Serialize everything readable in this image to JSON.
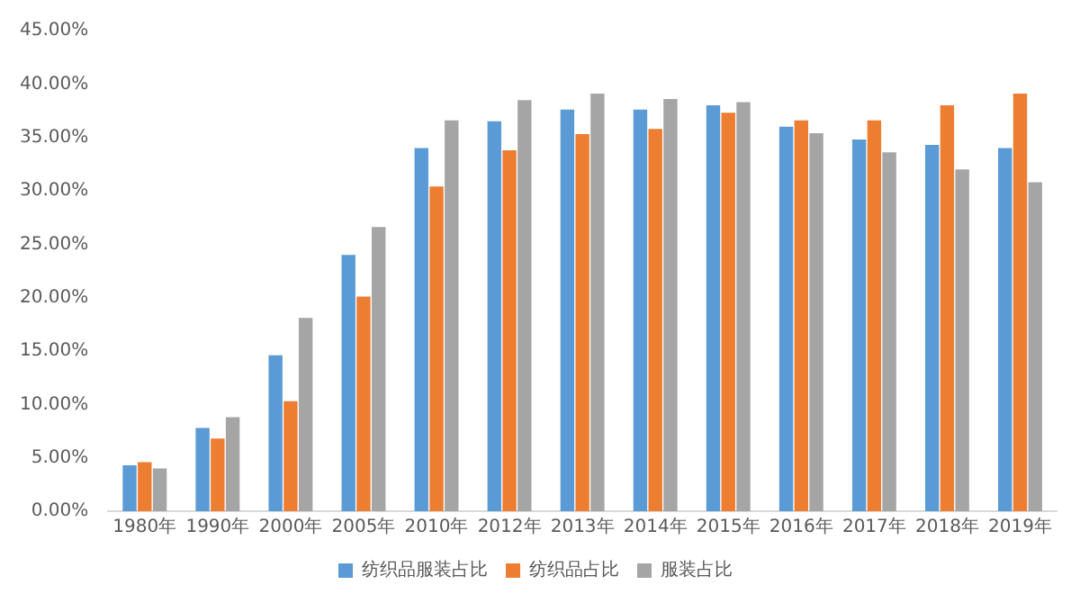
{
  "chart_data": {
    "type": "bar",
    "categories": [
      "1980年",
      "1990年",
      "2000年",
      "2005年",
      "2010年",
      "2012年",
      "2013年",
      "2014年",
      "2015年",
      "2016年",
      "2017年",
      "2018年",
      "2019年"
    ],
    "series": [
      {
        "name": "纺织品服装占比",
        "color": "#5b9bd5",
        "values": [
          4.3,
          7.8,
          14.6,
          24.0,
          34.0,
          36.5,
          37.6,
          37.6,
          38.0,
          36.0,
          34.8,
          34.3,
          34.0
        ]
      },
      {
        "name": "纺织品占比",
        "color": "#ed7d31",
        "values": [
          4.6,
          6.8,
          10.3,
          20.1,
          30.4,
          33.8,
          35.3,
          35.8,
          37.3,
          36.6,
          36.6,
          38.0,
          39.1
        ]
      },
      {
        "name": "服装占比",
        "color": "#a5a5a5",
        "values": [
          4.0,
          8.8,
          18.1,
          26.6,
          36.6,
          38.5,
          39.1,
          38.6,
          38.3,
          35.4,
          33.6,
          32.0,
          30.8
        ]
      }
    ],
    "ylim": [
      0,
      45
    ],
    "yticks": [
      {
        "value": 0,
        "label": "0.00%"
      },
      {
        "value": 5,
        "label": "5.00%"
      },
      {
        "value": 10,
        "label": "10.00%"
      },
      {
        "value": 15,
        "label": "15.00%"
      },
      {
        "value": 20,
        "label": "20.00%"
      },
      {
        "value": 25,
        "label": "25.00%"
      },
      {
        "value": 30,
        "label": "30.00%"
      },
      {
        "value": 35,
        "label": "35.00%"
      },
      {
        "value": 40,
        "label": "40.00%"
      },
      {
        "value": 45,
        "label": "45.00%"
      }
    ],
    "grid": false,
    "legend": "bottom"
  }
}
